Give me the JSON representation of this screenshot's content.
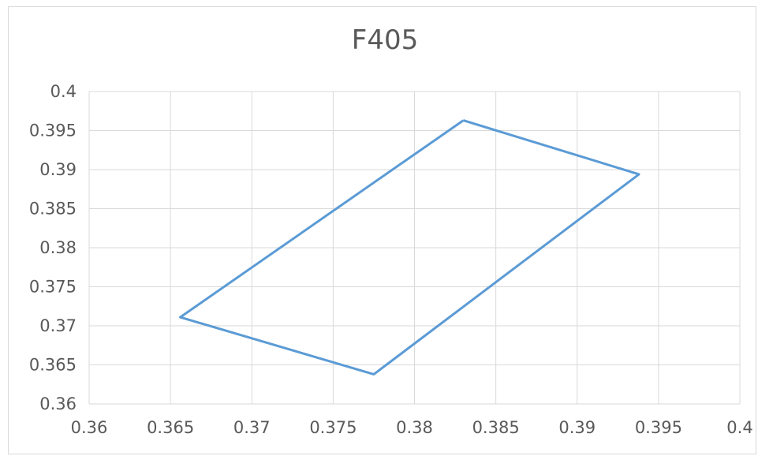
{
  "chart_data": {
    "type": "scatter",
    "title": "F405",
    "xlabel": "",
    "ylabel": "",
    "xlim": [
      0.36,
      0.4
    ],
    "ylim": [
      0.36,
      0.4
    ],
    "x_ticks": [
      "0.36",
      "0.365",
      "0.37",
      "0.375",
      "0.38",
      "0.385",
      "0.39",
      "0.395",
      "0.4"
    ],
    "y_ticks": [
      "0.36",
      "0.365",
      "0.37",
      "0.375",
      "0.38",
      "0.385",
      "0.39",
      "0.395",
      "0.4"
    ],
    "grid": true,
    "series": [
      {
        "color": "#5b9bd5",
        "style": "line",
        "points": [
          {
            "x": 0.383,
            "y": 0.3963
          },
          {
            "x": 0.3938,
            "y": 0.3894
          },
          {
            "x": 0.3775,
            "y": 0.3638
          },
          {
            "x": 0.3656,
            "y": 0.3711
          },
          {
            "x": 0.383,
            "y": 0.3963
          }
        ]
      }
    ]
  }
}
